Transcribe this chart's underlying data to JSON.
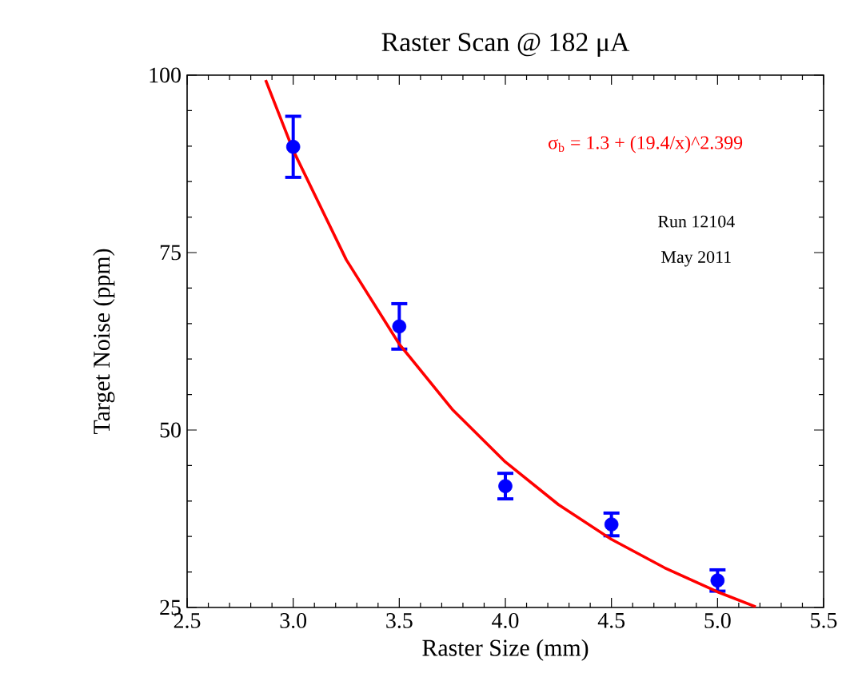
{
  "chart_data": {
    "type": "scatter",
    "title": "Raster Scan @ 182 μA",
    "xlabel": "Raster Size (mm)",
    "ylabel": "Target Noise (ppm)",
    "xlim": [
      2.5,
      5.5
    ],
    "ylim": [
      25,
      100
    ],
    "xticks": [
      {
        "value": 2.5,
        "label": "2.5"
      },
      {
        "value": 3,
        "label": "3.0"
      },
      {
        "value": 3.5,
        "label": "3.5"
      },
      {
        "value": 4,
        "label": "4.0"
      },
      {
        "value": 4.5,
        "label": "4.5"
      },
      {
        "value": 5,
        "label": "5.0"
      },
      {
        "value": 5.5,
        "label": "5.5"
      }
    ],
    "yticks": [
      25,
      50,
      75,
      100
    ],
    "grid": false,
    "series": [
      {
        "color": "#0000ff",
        "marker": "circle",
        "x": [
          3.0,
          3.5,
          4.0,
          4.5,
          5.0
        ],
        "values": [
          89.9,
          64.6,
          42.1,
          36.7,
          28.8
        ],
        "errors": [
          4.3,
          3.2,
          1.8,
          1.6,
          1.5
        ]
      },
      {
        "type": "line",
        "color": "#ff0000",
        "marker": "none",
        "line_style": "solid",
        "x": [
          2.87,
          3.0,
          3.25,
          3.5,
          3.75,
          4.0,
          4.25,
          4.5,
          4.75,
          5.0,
          5.18
        ],
        "values": [
          99.3,
          89.4,
          74.0,
          62.1,
          52.9,
          45.5,
          39.5,
          34.6,
          30.6,
          27.2,
          25.1
        ]
      }
    ],
    "annotations": [
      "σ$_{b}$ = 1.3 + (19.4/x)^2.399",
      "Run 12104",
      "May 2011"
    ]
  }
}
